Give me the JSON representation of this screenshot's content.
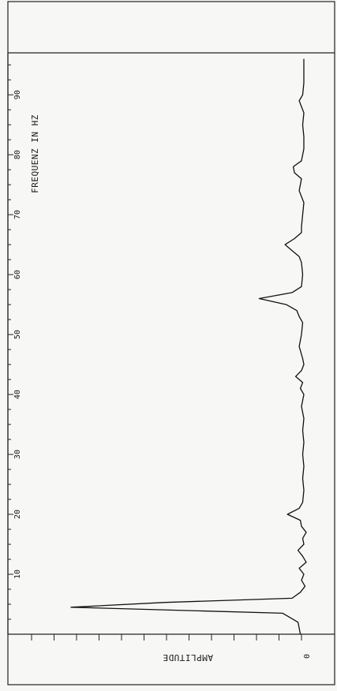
{
  "chart_data": {
    "type": "line",
    "orientation": "rotated-90",
    "xlabel": "FREQUENZ IN HZ",
    "ylabel": "AMPLITUDE",
    "xticks": [
      10,
      20,
      30,
      40,
      50,
      60,
      70,
      80,
      90
    ],
    "yticks": [
      0
    ],
    "xlim": [
      0,
      97
    ],
    "ylim": [
      0,
      10
    ],
    "grid": false,
    "series": [
      {
        "points": [
          [
            0,
            0.25
          ],
          [
            2,
            0.35
          ],
          [
            3.5,
            1.0
          ],
          [
            4.5,
            10.0
          ],
          [
            5.3,
            6.0
          ],
          [
            6,
            0.6
          ],
          [
            7,
            0.25
          ],
          [
            8,
            0.05
          ],
          [
            9,
            0.2
          ],
          [
            10,
            0.1
          ],
          [
            11,
            0.3
          ],
          [
            12,
            0.0
          ],
          [
            13,
            0.15
          ],
          [
            14,
            0.35
          ],
          [
            15,
            0.1
          ],
          [
            16,
            0.15
          ],
          [
            17,
            0.0
          ],
          [
            18,
            0.2
          ],
          [
            19,
            0.25
          ],
          [
            20,
            0.8
          ],
          [
            21,
            0.3
          ],
          [
            22,
            0.15
          ],
          [
            24,
            0.1
          ],
          [
            26,
            0.15
          ],
          [
            28,
            0.1
          ],
          [
            30,
            0.15
          ],
          [
            32,
            0.1
          ],
          [
            34,
            0.15
          ],
          [
            36,
            0.1
          ],
          [
            38,
            0.2
          ],
          [
            40,
            0.1
          ],
          [
            41,
            0.25
          ],
          [
            42,
            0.15
          ],
          [
            43,
            0.45
          ],
          [
            44,
            0.2
          ],
          [
            45,
            0.1
          ],
          [
            46,
            0.15
          ],
          [
            48,
            0.3
          ],
          [
            50,
            0.2
          ],
          [
            52,
            0.15
          ],
          [
            53,
            0.3
          ],
          [
            54,
            0.4
          ],
          [
            55,
            0.85
          ],
          [
            56,
            2.0
          ],
          [
            57,
            0.6
          ],
          [
            58,
            0.2
          ],
          [
            60,
            0.15
          ],
          [
            62,
            0.2
          ],
          [
            63,
            0.3
          ],
          [
            64,
            0.6
          ],
          [
            65,
            0.9
          ],
          [
            66,
            0.5
          ],
          [
            67,
            0.2
          ],
          [
            68,
            0.2
          ],
          [
            70,
            0.15
          ],
          [
            72,
            0.1
          ],
          [
            74,
            0.3
          ],
          [
            76,
            0.2
          ],
          [
            77,
            0.5
          ],
          [
            78,
            0.55
          ],
          [
            79,
            0.2
          ],
          [
            81,
            0.1
          ],
          [
            83,
            0.1
          ],
          [
            85,
            0.15
          ],
          [
            87,
            0.1
          ],
          [
            89,
            0.3
          ],
          [
            90,
            0.15
          ],
          [
            92,
            0.1
          ],
          [
            94,
            0.1
          ],
          [
            96,
            0.1
          ]
        ]
      }
    ]
  }
}
